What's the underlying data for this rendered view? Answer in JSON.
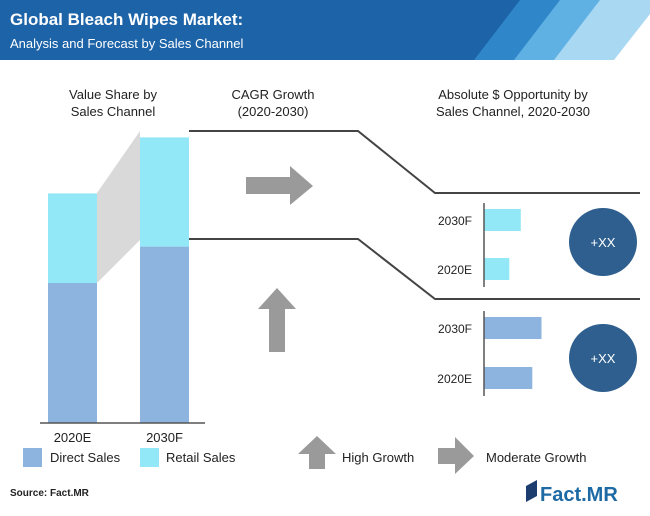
{
  "header": {
    "title": "Global Bleach Wipes Market:",
    "subtitle": "Analysis and Forecast by Sales Channel"
  },
  "sections": {
    "value_share": [
      "Value Share by",
      "Sales Channel"
    ],
    "cagr": [
      "CAGR Growth",
      "(2020-2030)"
    ],
    "opportunity": [
      "Absolute $ Opportunity by",
      "Sales Channel, 2020-2030"
    ]
  },
  "badges": [
    "+XX",
    "+XX"
  ],
  "legend": {
    "direct": "Direct Sales",
    "retail": "Retail Sales",
    "high_growth": "High Growth",
    "moderate_growth": "Moderate Growth"
  },
  "footer": {
    "source": "Source: Fact.MR",
    "logo": "Fact.MR"
  },
  "colors": {
    "header_bg": "#1c63a8",
    "direct": "#8db3df",
    "retail": "#92e8f6",
    "badge": "#2e5f8e",
    "arrow": "#9a9a9a",
    "connector": "#d9d9d9"
  },
  "chart_data": [
    {
      "type": "bar",
      "title": "Value Share by Sales Channel",
      "categories": [
        "2020E",
        "2030F"
      ],
      "series": [
        {
          "name": "Direct Sales",
          "values": [
            50,
            63
          ]
        },
        {
          "name": "Retail Sales",
          "values": [
            32,
            39
          ]
        }
      ],
      "stacked": true
    },
    {
      "type": "bar",
      "orientation": "horizontal",
      "categories": [
        "2030F",
        "2020E"
      ],
      "values": [
        8,
        5.5
      ],
      "series_color": "retail"
    },
    {
      "type": "bar",
      "orientation": "horizontal",
      "categories": [
        "2030F",
        "2020E"
      ],
      "values": [
        12.5,
        10.5
      ],
      "series_color": "direct"
    }
  ]
}
